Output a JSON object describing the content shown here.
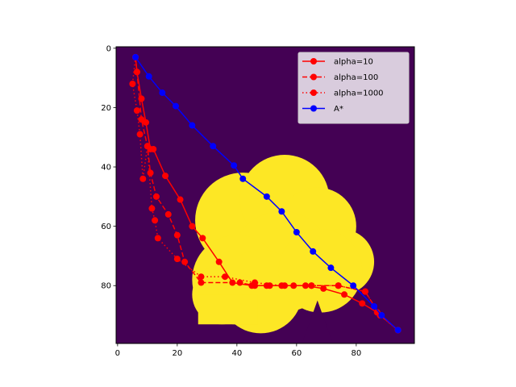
{
  "chart_data": {
    "type": "line",
    "title": "",
    "xlabel": "",
    "ylabel": "",
    "xlim": [
      -0.5,
      99.5
    ],
    "ylim": [
      99.5,
      -0.5
    ],
    "y_inverted": true,
    "xticks": [
      0,
      20,
      40,
      60,
      80
    ],
    "yticks": [
      0,
      20,
      40,
      60,
      80
    ],
    "xtick_labels": [
      "0",
      "20",
      "40",
      "60",
      "80"
    ],
    "ytick_labels": [
      "0",
      "20",
      "40",
      "60",
      "80"
    ],
    "grid": false,
    "legend_position": "top-right",
    "background": {
      "type": "image",
      "description_colors": {
        "free": "#440154",
        "obstacle": "#fde725"
      },
      "obstacle_blobs": [
        {
          "cx": 42,
          "cy": 58,
          "r": 16
        },
        {
          "cx": 56,
          "cy": 51,
          "r": 15
        },
        {
          "cx": 67,
          "cy": 60,
          "r": 13
        },
        {
          "cx": 75,
          "cy": 72,
          "r": 11
        },
        {
          "cx": 55,
          "cy": 72,
          "r": 17
        },
        {
          "cx": 40,
          "cy": 78,
          "r": 15
        },
        {
          "cx": 35,
          "cy": 83,
          "r": 10
        },
        {
          "cx": 48,
          "cy": 82,
          "r": 14
        },
        {
          "cx": 68,
          "cy": 75,
          "r": 14
        }
      ],
      "obstacle_rects": [
        {
          "x0": 27,
          "x1": 47,
          "y0": 83,
          "y1": 93
        }
      ],
      "free_notch": {
        "x0": 62,
        "x1": 72,
        "y0": 85,
        "y1": 99
      }
    },
    "series": [
      {
        "name": "alpha=10",
        "color": "#ff0000",
        "linestyle": "solid",
        "marker": "circle",
        "x": [
          6,
          6.5,
          8,
          9.5,
          11,
          12,
          16,
          21,
          25,
          28.5,
          34,
          38.5,
          45,
          50,
          56,
          63,
          69,
          76,
          82,
          87,
          94
        ],
        "y": [
          3,
          8,
          17,
          25,
          34,
          34,
          43,
          51,
          60,
          64,
          72,
          79,
          80,
          80,
          80,
          80,
          81,
          83,
          86,
          89,
          95
        ]
      },
      {
        "name": "alpha=100",
        "color": "#ff0000",
        "linestyle": "dashed",
        "marker": "circle",
        "x": [
          6,
          6.5,
          8,
          10,
          11,
          13,
          17,
          20,
          22.5,
          28,
          41,
          46,
          51,
          59,
          65,
          74,
          83,
          88,
          94
        ],
        "y": [
          3,
          8,
          24,
          33,
          42,
          50,
          56,
          63,
          72,
          79,
          79,
          80,
          80,
          80,
          80,
          80,
          82,
          90,
          95
        ]
      },
      {
        "name": "alpha=1000",
        "color": "#ff0000",
        "linestyle": "dotted",
        "marker": "circle",
        "x": [
          6,
          5,
          6.5,
          7.5,
          8.5,
          10,
          11.5,
          12.5,
          13.5,
          20,
          28,
          36,
          46,
          55,
          65,
          74,
          83,
          88,
          94
        ],
        "y": [
          3,
          12,
          21,
          29,
          44,
          33,
          54,
          58,
          64,
          71,
          77,
          77,
          79,
          80,
          80,
          80,
          82,
          90,
          95
        ]
      },
      {
        "name": "A*",
        "color": "#0000ff",
        "linestyle": "solid",
        "marker": "circle",
        "x": [
          6,
          10.5,
          15,
          19.5,
          25,
          32,
          39,
          42,
          50,
          55,
          60,
          65.5,
          71.5,
          79,
          86,
          88.5,
          94
        ],
        "y": [
          3,
          9.5,
          15,
          19.5,
          26,
          33,
          39.5,
          44,
          50,
          55,
          62,
          68.5,
          74,
          80,
          87,
          90,
          95
        ]
      }
    ]
  }
}
